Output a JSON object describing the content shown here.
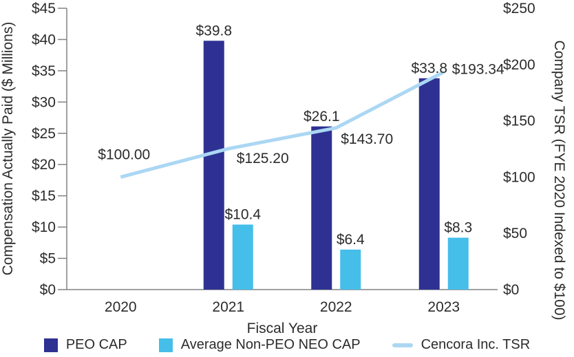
{
  "colors": {
    "peo_cap_bar": "#2E3192",
    "neo_cap_bar": "#45BEEA",
    "tsr_line": "#ABD7F3",
    "axis_gray": "#808285",
    "text": "#2b2b2b"
  },
  "chart_data": {
    "type": "bar+line combo",
    "categories": [
      "2020",
      "2021",
      "2022",
      "2023"
    ],
    "series": [
      {
        "name": "PEO CAP",
        "type": "bar",
        "axis": "left",
        "color": "#2E3192",
        "values": [
          null,
          39.8,
          26.1,
          33.8
        ],
        "labels": [
          "",
          "$39.8",
          "$26.1",
          "$33.8"
        ]
      },
      {
        "name": "Average Non-PEO NEO CAP",
        "type": "bar",
        "axis": "left",
        "color": "#45BEEA",
        "values": [
          null,
          10.4,
          6.4,
          8.3
        ],
        "labels": [
          "",
          "$10.4",
          "$6.4",
          "$8.3"
        ]
      },
      {
        "name": "Cencora Inc. TSR",
        "type": "line",
        "axis": "right",
        "color": "#ABD7F3",
        "values": [
          100.0,
          125.2,
          143.7,
          193.34
        ],
        "labels": [
          "$100.00",
          "$125.20",
          "$143.70",
          "$193.34"
        ],
        "label_offsets": [
          {
            "dx": 5,
            "dy": -26,
            "anchor": "middle"
          },
          {
            "dx": 12,
            "dy": 21,
            "anchor": "start"
          },
          {
            "dx": 7,
            "dy": 23,
            "anchor": "start"
          },
          {
            "dx": 12,
            "dy": 3,
            "anchor": "start"
          }
        ]
      }
    ],
    "left_axis": {
      "title": "Compensation Actually Paid ($ Millions)",
      "min": 0,
      "max": 45,
      "step": 5,
      "tick_labels": [
        "$0",
        "$5",
        "$10",
        "$15",
        "$20",
        "$25",
        "$30",
        "$35",
        "$40",
        "$45"
      ]
    },
    "right_axis": {
      "title": "Company TSR (FYE 2020 Indexed to $100)",
      "min": 0,
      "max": 250,
      "step": 50,
      "tick_labels": [
        "$0",
        "$50",
        "$100",
        "$150",
        "$200",
        "$250"
      ]
    },
    "xlabel": "Fiscal Year",
    "grid": false,
    "legend_position": "bottom"
  },
  "legend": {
    "items": [
      {
        "label": "PEO CAP",
        "swatch": "square",
        "color": "#2E3192"
      },
      {
        "label": "Average Non-PEO NEO CAP",
        "swatch": "square",
        "color": "#45BEEA"
      },
      {
        "label": "Cencora Inc. TSR",
        "swatch": "line",
        "color": "#ABD7F3"
      }
    ]
  }
}
